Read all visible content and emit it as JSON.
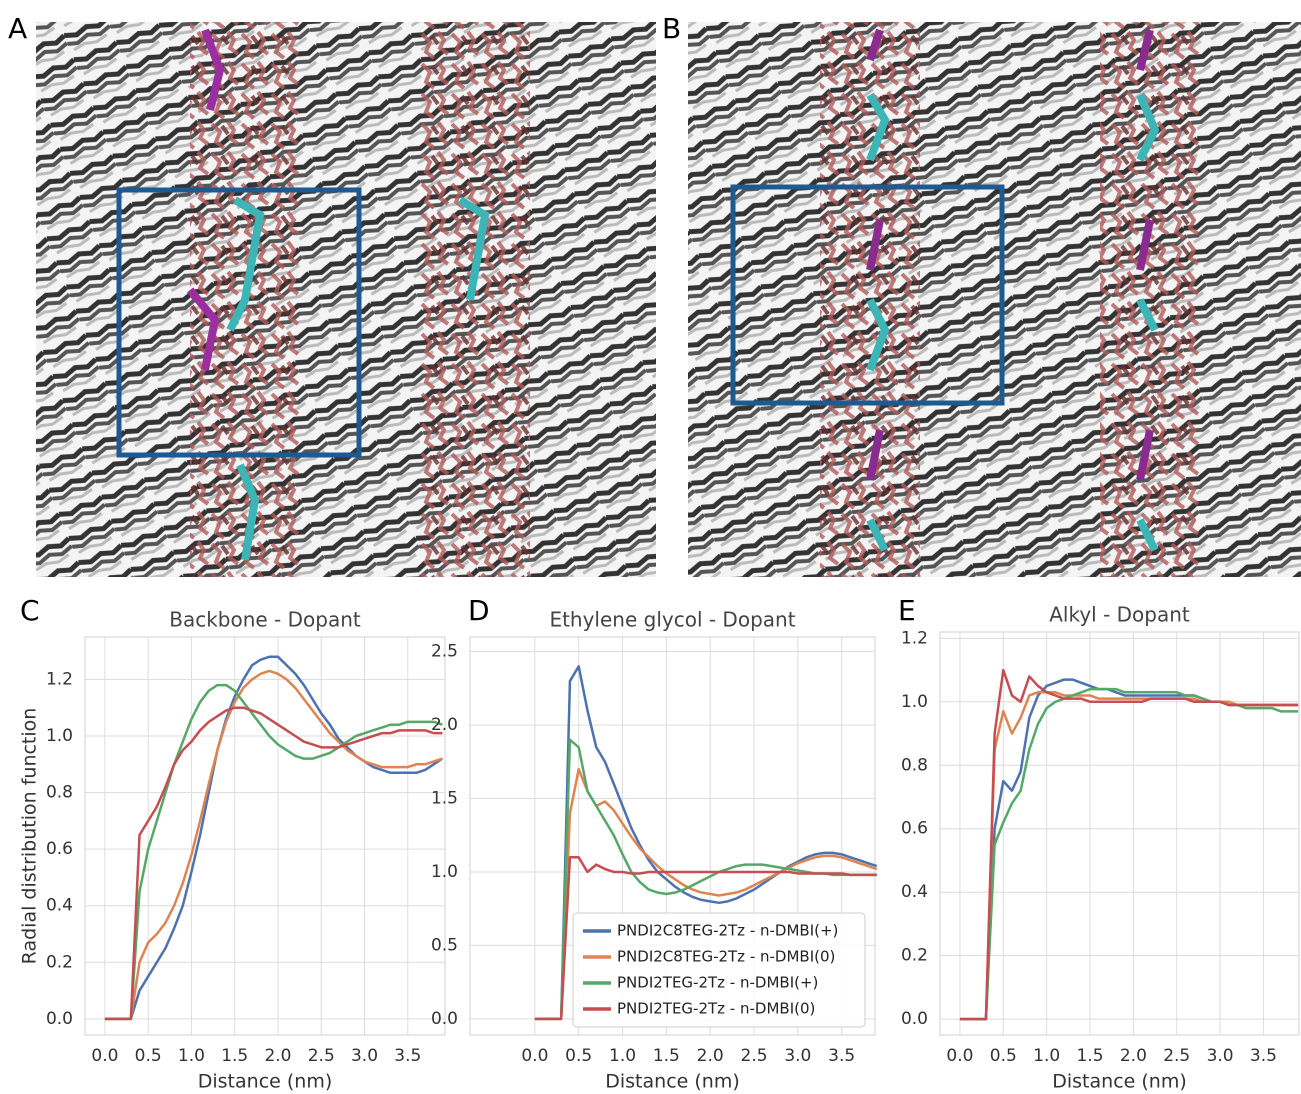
{
  "panel_labels": [
    "A",
    "B",
    "C",
    "D",
    "E"
  ],
  "chart_data": [
    {
      "type": "line",
      "title": "Backbone - Dopant",
      "x_label": "Distance (nm)",
      "y_label": "Radial distribution function",
      "x": [
        0,
        0.1,
        0.2,
        0.3,
        0.4,
        0.5,
        0.6,
        0.7,
        0.8,
        0.9,
        1.0,
        1.1,
        1.2,
        1.3,
        1.4,
        1.5,
        1.6,
        1.7,
        1.8,
        1.9,
        2.0,
        2.1,
        2.2,
        2.3,
        2.4,
        2.5,
        2.6,
        2.7,
        2.8,
        2.9,
        3.0,
        3.1,
        3.2,
        3.3,
        3.4,
        3.5,
        3.6,
        3.7,
        3.8,
        3.9
      ],
      "xlim": [
        -0.23,
        3.93
      ],
      "ylim": [
        -0.057,
        1.35
      ],
      "xticks": [
        {
          "value": 0,
          "label": "0.0"
        },
        0.5,
        {
          "value": 1,
          "label": "1.0"
        },
        1.5,
        {
          "value": 2,
          "label": "2.0"
        },
        2.5,
        {
          "value": 3,
          "label": "3.0"
        },
        3.5
      ],
      "yticks": [
        {
          "value": 0,
          "label": "0.0"
        },
        0.2,
        0.4,
        0.6,
        0.8,
        {
          "value": 1,
          "label": "1.0"
        },
        1.2
      ],
      "grid": true,
      "series": [
        {
          "color": "#4c72b0",
          "values": [
            0,
            0,
            0,
            0,
            0.1,
            0.15,
            0.2,
            0.25,
            0.32,
            0.4,
            0.52,
            0.65,
            0.8,
            0.95,
            1.06,
            1.14,
            1.2,
            1.25,
            1.27,
            1.28,
            1.28,
            1.25,
            1.22,
            1.18,
            1.13,
            1.08,
            1.04,
            0.99,
            0.96,
            0.93,
            0.91,
            0.89,
            0.88,
            0.87,
            0.87,
            0.87,
            0.87,
            0.88,
            0.9,
            0.92
          ]
        },
        {
          "color": "#dd8452",
          "values": [
            0,
            0,
            0,
            0,
            0.2,
            0.27,
            0.3,
            0.34,
            0.4,
            0.48,
            0.58,
            0.7,
            0.83,
            0.95,
            1.05,
            1.12,
            1.17,
            1.2,
            1.22,
            1.23,
            1.22,
            1.2,
            1.17,
            1.13,
            1.09,
            1.05,
            1.01,
            0.98,
            0.95,
            0.93,
            0.91,
            0.9,
            0.89,
            0.89,
            0.89,
            0.89,
            0.9,
            0.9,
            0.91,
            0.92
          ]
        },
        {
          "color": "#55a868",
          "values": [
            0,
            0,
            0,
            0,
            0.45,
            0.6,
            0.7,
            0.8,
            0.9,
            0.98,
            1.06,
            1.12,
            1.16,
            1.18,
            1.18,
            1.16,
            1.12,
            1.08,
            1.04,
            1.0,
            0.97,
            0.95,
            0.93,
            0.92,
            0.92,
            0.93,
            0.94,
            0.96,
            0.98,
            1.0,
            1.01,
            1.02,
            1.03,
            1.04,
            1.04,
            1.05,
            1.05,
            1.05,
            1.05,
            1.04
          ]
        },
        {
          "color": "#c44e52",
          "values": [
            0,
            0,
            0,
            0,
            0.65,
            0.7,
            0.75,
            0.82,
            0.9,
            0.95,
            0.98,
            1.02,
            1.05,
            1.07,
            1.09,
            1.1,
            1.1,
            1.09,
            1.08,
            1.06,
            1.04,
            1.02,
            1.0,
            0.98,
            0.97,
            0.96,
            0.96,
            0.96,
            0.97,
            0.98,
            0.99,
            1.0,
            1.01,
            1.01,
            1.02,
            1.02,
            1.02,
            1.02,
            1.01,
            1.01
          ]
        }
      ]
    },
    {
      "type": "line",
      "title": "Ethylene glycol - Dopant",
      "x_label": "Distance (nm)",
      "x": [
        0,
        0.1,
        0.2,
        0.3,
        0.4,
        0.5,
        0.6,
        0.7,
        0.8,
        0.9,
        1.0,
        1.1,
        1.2,
        1.3,
        1.4,
        1.5,
        1.6,
        1.7,
        1.8,
        1.9,
        2.0,
        2.1,
        2.2,
        2.3,
        2.4,
        2.5,
        2.6,
        2.7,
        2.8,
        2.9,
        3.0,
        3.1,
        3.2,
        3.3,
        3.4,
        3.5,
        3.6,
        3.7,
        3.8,
        3.9
      ],
      "xlim": [
        -0.74,
        3.88
      ],
      "ylim": [
        -0.11,
        2.6
      ],
      "xticks": [
        {
          "value": 0,
          "label": "0.0"
        },
        0.5,
        {
          "value": 1,
          "label": "1.0"
        },
        1.5,
        {
          "value": 2,
          "label": "2.0"
        },
        2.5,
        {
          "value": 3,
          "label": "3.0"
        },
        3.5
      ],
      "yticks": [
        {
          "value": 0,
          "label": "0.0"
        },
        0.5,
        {
          "value": 1,
          "label": "1.0"
        },
        1.5,
        {
          "value": 2,
          "label": "2.0"
        },
        2.5
      ],
      "grid": true,
      "legend": "lower right",
      "series": [
        {
          "name": "PNDI2C8TEG-2Tz - n-DMBI(+)",
          "color": "#4c72b0",
          "values": [
            0,
            0,
            0,
            0,
            2.3,
            2.4,
            2.1,
            1.85,
            1.75,
            1.6,
            1.45,
            1.3,
            1.18,
            1.08,
            1.0,
            0.95,
            0.9,
            0.86,
            0.83,
            0.81,
            0.8,
            0.79,
            0.8,
            0.82,
            0.85,
            0.88,
            0.92,
            0.96,
            1.0,
            1.04,
            1.07,
            1.1,
            1.12,
            1.13,
            1.13,
            1.12,
            1.1,
            1.08,
            1.06,
            1.04
          ]
        },
        {
          "name": "PNDI2C8TEG-2Tz - n-DMBI(0)",
          "color": "#dd8452",
          "values": [
            0,
            0,
            0,
            0,
            1.4,
            1.7,
            1.55,
            1.45,
            1.48,
            1.42,
            1.33,
            1.24,
            1.16,
            1.1,
            1.04,
            0.99,
            0.95,
            0.91,
            0.88,
            0.86,
            0.85,
            0.84,
            0.85,
            0.86,
            0.88,
            0.91,
            0.94,
            0.97,
            1.0,
            1.03,
            1.06,
            1.08,
            1.1,
            1.11,
            1.11,
            1.1,
            1.08,
            1.06,
            1.04,
            1.02
          ]
        },
        {
          "name": "PNDI2TEG-2Tz - n-DMBI(+)",
          "color": "#55a868",
          "values": [
            0,
            0,
            0,
            0,
            1.9,
            1.85,
            1.55,
            1.45,
            1.35,
            1.25,
            1.12,
            1.0,
            0.93,
            0.88,
            0.86,
            0.85,
            0.86,
            0.88,
            0.91,
            0.94,
            0.97,
            1.0,
            1.02,
            1.04,
            1.05,
            1.05,
            1.05,
            1.04,
            1.03,
            1.02,
            1.01,
            1.0,
            0.99,
            0.99,
            0.98,
            0.98,
            0.98,
            0.98,
            0.98,
            0.98
          ]
        },
        {
          "name": "PNDI2TEG-2Tz - n-DMBI(0)",
          "color": "#c44e52",
          "values": [
            0,
            0,
            0,
            0,
            1.1,
            1.1,
            1.0,
            1.05,
            1.02,
            1.0,
            1.0,
            0.99,
            0.99,
            1.0,
            1.0,
            1.0,
            1.0,
            1.0,
            1.0,
            1.0,
            1.0,
            1.0,
            1.0,
            1.0,
            1.0,
            1.0,
            1.0,
            1.0,
            1.0,
            1.0,
            0.99,
            0.99,
            0.99,
            0.99,
            0.99,
            0.99,
            0.98,
            0.98,
            0.98,
            0.98
          ]
        }
      ]
    },
    {
      "type": "line",
      "title": "Alkyl - Dopant",
      "x_label": "Distance (nm)",
      "x": [
        0,
        0.1,
        0.2,
        0.3,
        0.4,
        0.5,
        0.6,
        0.7,
        0.8,
        0.9,
        1.0,
        1.1,
        1.2,
        1.3,
        1.4,
        1.5,
        1.6,
        1.7,
        1.8,
        1.9,
        2.0,
        2.1,
        2.2,
        2.3,
        2.4,
        2.5,
        2.6,
        2.7,
        2.8,
        2.9,
        3.0,
        3.1,
        3.2,
        3.3,
        3.4,
        3.5,
        3.6,
        3.7,
        3.8,
        3.9
      ],
      "xlim": [
        -0.23,
        3.91
      ],
      "ylim": [
        -0.05,
        1.22
      ],
      "xticks": [
        {
          "value": 0,
          "label": "0.0"
        },
        0.5,
        {
          "value": 1,
          "label": "1.0"
        },
        1.5,
        {
          "value": 2,
          "label": "2.0"
        },
        2.5,
        {
          "value": 3,
          "label": "3.0"
        },
        3.5
      ],
      "yticks": [
        {
          "value": 0,
          "label": "0.0"
        },
        0.2,
        0.4,
        0.6,
        0.8,
        {
          "value": 1,
          "label": "1.0"
        },
        1.2
      ],
      "grid": true,
      "series": [
        {
          "color": "#4c72b0",
          "values": [
            0,
            0,
            0,
            0,
            0.6,
            0.75,
            0.72,
            0.78,
            0.95,
            1.02,
            1.05,
            1.06,
            1.07,
            1.07,
            1.06,
            1.05,
            1.04,
            1.04,
            1.03,
            1.02,
            1.02,
            1.02,
            1.02,
            1.02,
            1.02,
            1.02,
            1.02,
            1.02,
            1.01,
            1.0,
            1.0,
            0.99,
            0.99,
            0.99,
            0.99,
            0.99,
            0.99,
            0.99,
            0.99,
            0.99
          ]
        },
        {
          "color": "#dd8452",
          "values": [
            0,
            0,
            0,
            0,
            0.85,
            0.97,
            0.9,
            0.95,
            1.02,
            1.03,
            1.03,
            1.03,
            1.02,
            1.02,
            1.02,
            1.02,
            1.01,
            1.01,
            1.01,
            1.01,
            1.01,
            1.01,
            1.01,
            1.01,
            1.01,
            1.01,
            1.01,
            1.01,
            1.0,
            1.0,
            1.0,
            1.0,
            0.99,
            0.99,
            0.99,
            0.99,
            0.99,
            0.99,
            0.99,
            0.99
          ]
        },
        {
          "color": "#55a868",
          "values": [
            0,
            0,
            0,
            0,
            0.55,
            0.62,
            0.68,
            0.72,
            0.85,
            0.93,
            0.98,
            1.0,
            1.01,
            1.02,
            1.03,
            1.04,
            1.04,
            1.04,
            1.04,
            1.03,
            1.03,
            1.03,
            1.03,
            1.03,
            1.03,
            1.03,
            1.02,
            1.02,
            1.01,
            1.0,
            1.0,
            0.99,
            0.99,
            0.98,
            0.98,
            0.98,
            0.98,
            0.97,
            0.97,
            0.97
          ]
        },
        {
          "color": "#c44e52",
          "values": [
            0,
            0,
            0,
            0,
            0.9,
            1.1,
            1.02,
            1.0,
            1.08,
            1.05,
            1.03,
            1.02,
            1.01,
            1.01,
            1.01,
            1.0,
            1.0,
            1.0,
            1.0,
            1.0,
            1.0,
            1.0,
            1.01,
            1.01,
            1.01,
            1.01,
            1.01,
            1.0,
            1.0,
            1.0,
            1.0,
            0.99,
            0.99,
            0.99,
            0.99,
            0.99,
            0.99,
            0.99,
            0.99,
            0.99
          ]
        }
      ]
    }
  ]
}
